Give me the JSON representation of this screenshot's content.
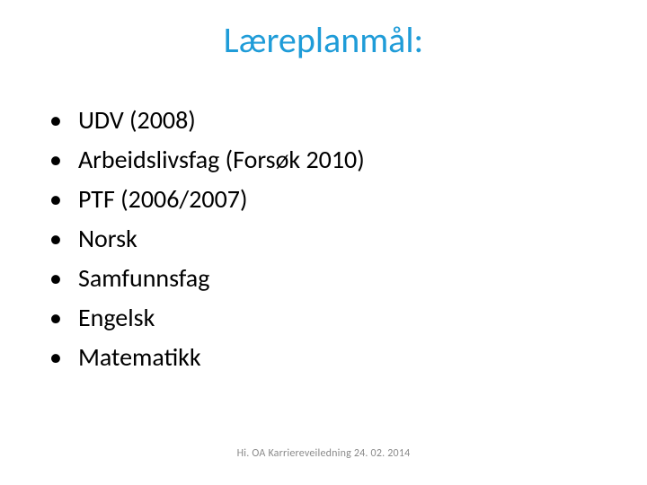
{
  "slide": {
    "title": "Læreplanmål:",
    "title_color": "#1f9cd8",
    "title_fontsize": 40,
    "background_color": "#ffffff",
    "bullets": [
      "UDV (2008)",
      "Arbeidslivsfag (Forsøk 2010)",
      "PTF (2006/2007)",
      "Norsk",
      "Samfunnsfag",
      "Engelsk",
      "Matematikk"
    ],
    "bullet_fontsize": 28,
    "bullet_color": "#000000",
    "footer": "Hi. OA Karriereveiledning 24. 02. 2014",
    "footer_fontsize": 12,
    "footer_color": "#8a8a8a"
  }
}
